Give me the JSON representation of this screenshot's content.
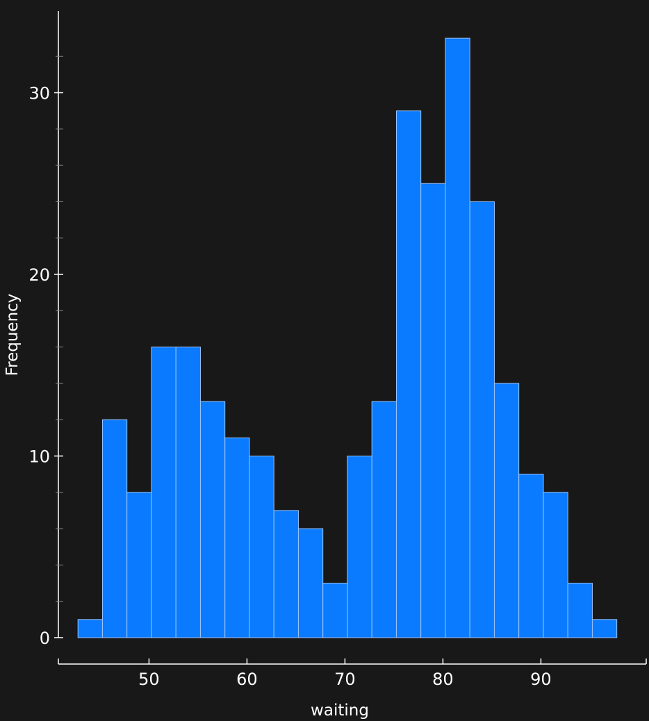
{
  "chart_data": {
    "type": "bar",
    "variant": "histogram",
    "xlabel": "waiting",
    "ylabel": "Frequency",
    "bin_edges": [
      42.75,
      45.25,
      47.75,
      50.25,
      52.75,
      55.25,
      57.75,
      60.25,
      62.75,
      65.25,
      67.75,
      70.25,
      72.75,
      75.25,
      77.75,
      80.25,
      82.75,
      85.25,
      87.75,
      90.25,
      92.75,
      95.25,
      97.75
    ],
    "values": [
      1,
      12,
      8,
      16,
      16,
      13,
      11,
      10,
      7,
      6,
      3,
      10,
      13,
      29,
      25,
      33,
      24,
      14,
      9,
      8,
      3,
      1
    ],
    "xlim": [
      40.75,
      100.75
    ],
    "ylim": [
      0,
      33.5
    ],
    "xticks": [
      50,
      60,
      70,
      80,
      90
    ],
    "yticks": [
      0,
      10,
      20,
      30
    ],
    "grid": false,
    "bar_color": "#0a7bff",
    "bar_edge_color": "#9fc6ff",
    "background_color": "#181818",
    "text_color": "#ffffff"
  }
}
